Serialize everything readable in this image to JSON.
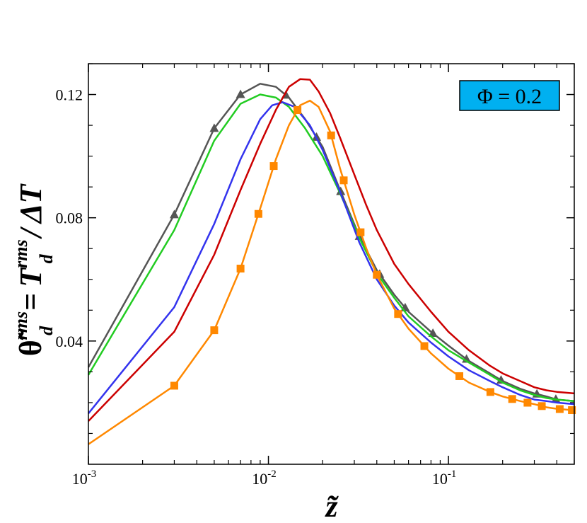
{
  "chart_data": {
    "type": "line",
    "x_scale": "log",
    "xlim": [
      0.001,
      0.5
    ],
    "ylim": [
      0.0,
      0.13
    ],
    "x_ticks": [
      {
        "value": 0.001,
        "base": "10",
        "exp": "-3"
      },
      {
        "value": 0.01,
        "base": "10",
        "exp": "-2"
      },
      {
        "value": 0.1,
        "base": "10",
        "exp": "-1"
      }
    ],
    "y_ticks": [
      {
        "value": 0.04,
        "label": "0.04"
      },
      {
        "value": 0.08,
        "label": "0.08"
      },
      {
        "value": 0.12,
        "label": "0.12"
      }
    ],
    "xlabel": "z̃",
    "ylabel": {
      "theta": "θ̃",
      "theta_sup": "rms",
      "theta_sub": "d",
      "equals": "=",
      "T": "T",
      "T_sup": "rms",
      "T_sub": "d",
      "slash": "/",
      "delta_t": "ΔT"
    },
    "annotation": {
      "text": "Φ = 0.2",
      "box_color": "#00b0f0",
      "position": "top-right"
    },
    "series": [
      {
        "name": "gray-triangles",
        "color": "#555555",
        "marker": "triangle",
        "points": [
          [
            0.001,
            0.0315
          ],
          [
            0.003,
            0.081
          ],
          [
            0.005,
            0.109
          ],
          [
            0.007,
            0.12
          ],
          [
            0.009,
            0.1235
          ],
          [
            0.011,
            0.1225
          ],
          [
            0.013,
            0.119
          ],
          [
            0.016,
            0.112
          ],
          [
            0.02,
            0.103
          ],
          [
            0.025,
            0.089
          ],
          [
            0.032,
            0.074
          ],
          [
            0.04,
            0.063
          ],
          [
            0.05,
            0.055
          ],
          [
            0.06,
            0.0495
          ],
          [
            0.08,
            0.043
          ],
          [
            0.1,
            0.0385
          ],
          [
            0.13,
            0.0335
          ],
          [
            0.17,
            0.0295
          ],
          [
            0.2,
            0.027
          ],
          [
            0.25,
            0.0245
          ],
          [
            0.3,
            0.023
          ],
          [
            0.35,
            0.022
          ],
          [
            0.4,
            0.021
          ],
          [
            0.5,
            0.0205
          ]
        ],
        "marker_x": [
          0.003,
          0.005,
          0.007,
          0.0125,
          0.0185,
          0.0252,
          0.032,
          0.0415,
          0.0575,
          0.082,
          0.126,
          0.196,
          0.31,
          0.395
        ]
      },
      {
        "name": "green",
        "color": "#22cc22",
        "marker": "none",
        "points": [
          [
            0.001,
            0.029
          ],
          [
            0.003,
            0.076
          ],
          [
            0.005,
            0.105
          ],
          [
            0.007,
            0.117
          ],
          [
            0.009,
            0.12
          ],
          [
            0.011,
            0.119
          ],
          [
            0.013,
            0.116
          ],
          [
            0.016,
            0.109
          ],
          [
            0.02,
            0.1
          ],
          [
            0.025,
            0.088
          ],
          [
            0.032,
            0.0735
          ],
          [
            0.04,
            0.062
          ],
          [
            0.05,
            0.054
          ],
          [
            0.06,
            0.048
          ],
          [
            0.08,
            0.0415
          ],
          [
            0.1,
            0.037
          ],
          [
            0.13,
            0.033
          ],
          [
            0.17,
            0.029
          ],
          [
            0.2,
            0.0265
          ],
          [
            0.25,
            0.024
          ],
          [
            0.3,
            0.0225
          ],
          [
            0.35,
            0.0215
          ],
          [
            0.4,
            0.021
          ],
          [
            0.5,
            0.0205
          ]
        ]
      },
      {
        "name": "blue",
        "color": "#3333ee",
        "marker": "none",
        "points": [
          [
            0.001,
            0.0165
          ],
          [
            0.003,
            0.051
          ],
          [
            0.005,
            0.078
          ],
          [
            0.007,
            0.099
          ],
          [
            0.009,
            0.112
          ],
          [
            0.0105,
            0.1165
          ],
          [
            0.012,
            0.1175
          ],
          [
            0.014,
            0.116
          ],
          [
            0.017,
            0.11
          ],
          [
            0.02,
            0.102
          ],
          [
            0.025,
            0.0885
          ],
          [
            0.032,
            0.072
          ],
          [
            0.04,
            0.06
          ],
          [
            0.05,
            0.0515
          ],
          [
            0.06,
            0.046
          ],
          [
            0.08,
            0.0395
          ],
          [
            0.1,
            0.035
          ],
          [
            0.13,
            0.0305
          ],
          [
            0.17,
            0.027
          ],
          [
            0.2,
            0.025
          ],
          [
            0.25,
            0.0225
          ],
          [
            0.3,
            0.021
          ],
          [
            0.35,
            0.0205
          ],
          [
            0.4,
            0.02
          ],
          [
            0.5,
            0.0195
          ]
        ]
      },
      {
        "name": "red",
        "color": "#cc0000",
        "marker": "none",
        "points": [
          [
            0.001,
            0.014
          ],
          [
            0.003,
            0.043
          ],
          [
            0.005,
            0.068
          ],
          [
            0.007,
            0.089
          ],
          [
            0.009,
            0.104
          ],
          [
            0.011,
            0.115
          ],
          [
            0.013,
            0.1225
          ],
          [
            0.015,
            0.125
          ],
          [
            0.017,
            0.1248
          ],
          [
            0.019,
            0.121
          ],
          [
            0.022,
            0.114
          ],
          [
            0.025,
            0.106
          ],
          [
            0.03,
            0.094
          ],
          [
            0.035,
            0.084
          ],
          [
            0.04,
            0.076
          ],
          [
            0.05,
            0.065
          ],
          [
            0.06,
            0.0585
          ],
          [
            0.08,
            0.0495
          ],
          [
            0.1,
            0.043
          ],
          [
            0.13,
            0.037
          ],
          [
            0.17,
            0.032
          ],
          [
            0.2,
            0.0295
          ],
          [
            0.25,
            0.027
          ],
          [
            0.3,
            0.025
          ],
          [
            0.35,
            0.024
          ],
          [
            0.4,
            0.0235
          ],
          [
            0.5,
            0.023
          ]
        ]
      },
      {
        "name": "orange-squares",
        "color": "#ff8800",
        "marker": "square",
        "points": [
          [
            0.001,
            0.0065
          ],
          [
            0.003,
            0.0255
          ],
          [
            0.005,
            0.0435
          ],
          [
            0.007,
            0.0635
          ],
          [
            0.009,
            0.083
          ],
          [
            0.011,
            0.099
          ],
          [
            0.013,
            0.11
          ],
          [
            0.015,
            0.1165
          ],
          [
            0.017,
            0.118
          ],
          [
            0.019,
            0.116
          ],
          [
            0.022,
            0.108
          ],
          [
            0.025,
            0.096
          ],
          [
            0.03,
            0.081
          ],
          [
            0.035,
            0.07
          ],
          [
            0.04,
            0.0615
          ],
          [
            0.05,
            0.0505
          ],
          [
            0.06,
            0.044
          ],
          [
            0.08,
            0.036
          ],
          [
            0.1,
            0.031
          ],
          [
            0.13,
            0.0265
          ],
          [
            0.17,
            0.0235
          ],
          [
            0.2,
            0.022
          ],
          [
            0.25,
            0.0205
          ],
          [
            0.3,
            0.0195
          ],
          [
            0.35,
            0.0185
          ],
          [
            0.4,
            0.018
          ],
          [
            0.5,
            0.0175
          ]
        ],
        "marker_x": [
          0.003,
          0.005,
          0.007,
          0.0088,
          0.0107,
          0.0145,
          0.0223,
          0.0262,
          0.0325,
          0.04,
          0.0525,
          0.0735,
          0.115,
          0.171,
          0.226,
          0.275,
          0.33,
          0.415,
          0.485
        ]
      }
    ]
  }
}
